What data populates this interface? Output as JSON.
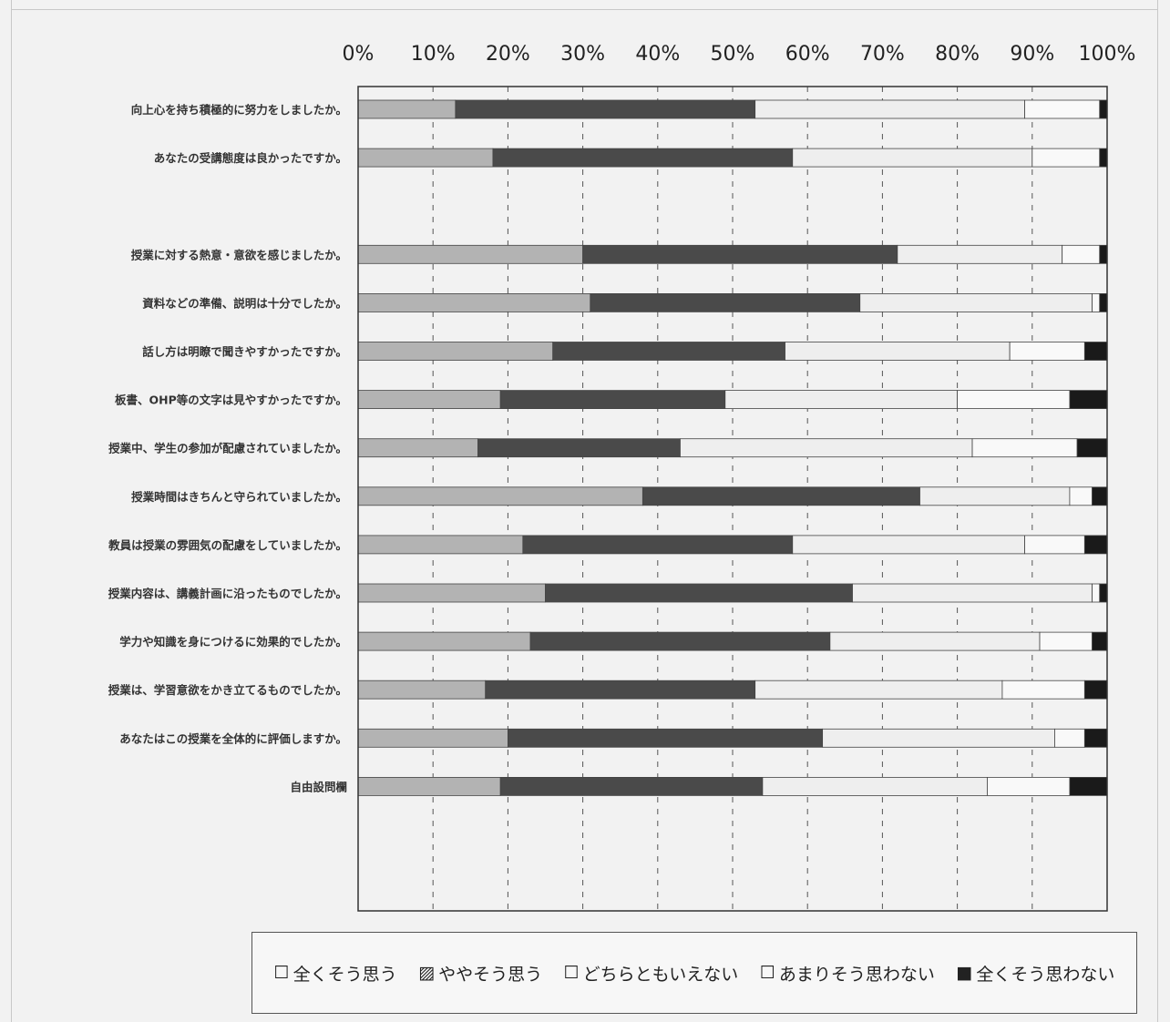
{
  "chart_data": {
    "type": "bar",
    "orientation": "horizontal",
    "stacked": true,
    "percent_scale": true,
    "xlim": [
      0,
      100
    ],
    "x_ticks": [
      "0%",
      "10%",
      "20%",
      "30%",
      "40%",
      "50%",
      "60%",
      "70%",
      "80%",
      "90%",
      "100%"
    ],
    "grid": "vertical dashed",
    "legend_position": "bottom",
    "rows": [
      {
        "label": "向上心を持ち積極的に努力をしましたか。",
        "values": [
          13,
          40,
          36,
          10,
          1
        ]
      },
      {
        "label": "あなたの受講態度は良かったですか。",
        "values": [
          18,
          40,
          32,
          9,
          1
        ]
      },
      {
        "label": "",
        "values": null
      },
      {
        "label": "授業に対する熱意・意欲を感じましたか。",
        "values": [
          30,
          42,
          22,
          5,
          1
        ]
      },
      {
        "label": "資料などの準備、説明は十分でしたか。",
        "values": [
          31,
          36,
          31,
          1,
          1
        ]
      },
      {
        "label": "話し方は明瞭で聞きやすかったですか。",
        "values": [
          26,
          31,
          30,
          10,
          3
        ]
      },
      {
        "label": "板書、OHP等の文字は見やすかったですか。",
        "values": [
          19,
          30,
          31,
          15,
          5
        ]
      },
      {
        "label": "授業中、学生の参加が配慮されていましたか。",
        "values": [
          16,
          27,
          39,
          14,
          4
        ]
      },
      {
        "label": "授業時間はきちんと守られていましたか。",
        "values": [
          38,
          37,
          20,
          3,
          2
        ]
      },
      {
        "label": "教員は授業の雰囲気の配慮をしていましたか。",
        "values": [
          22,
          36,
          31,
          8,
          3
        ]
      },
      {
        "label": "授業内容は、講義計画に沿ったものでしたか。",
        "values": [
          25,
          41,
          32,
          1,
          1
        ]
      },
      {
        "label": "学力や知識を身につけるに効果的でしたか。",
        "values": [
          23,
          40,
          28,
          7,
          2
        ]
      },
      {
        "label": "授業は、学習意欲をかき立てるものでしたか。",
        "values": [
          17,
          36,
          33,
          11,
          3
        ]
      },
      {
        "label": "あなたはこの授業を全体的に評価しますか。",
        "values": [
          20,
          42,
          31,
          4,
          3
        ]
      },
      {
        "label": "自由設問欄",
        "values": [
          19,
          35,
          30,
          11,
          5
        ]
      }
    ],
    "series": [
      {
        "name": "全くそう思う",
        "color": "#b3b3b3"
      },
      {
        "name": "ややそう思う",
        "color": "#4a4a4a"
      },
      {
        "name": "どちらともいえない",
        "color": "#eeeeee"
      },
      {
        "name": "あまりそう思わない",
        "color": "#f9f9f9"
      },
      {
        "name": "全くそう思わない",
        "color": "#1a1a1a"
      }
    ]
  },
  "legend": {
    "items": [
      {
        "symbol": "☐",
        "label": "全くそう思う"
      },
      {
        "symbol": "▨",
        "label": "ややそう思う"
      },
      {
        "symbol": "☐",
        "label": "どちらともいえない"
      },
      {
        "symbol": "☐",
        "label": "あまりそう思わない"
      },
      {
        "symbol": "■",
        "label": "全くそう思わない"
      }
    ]
  }
}
